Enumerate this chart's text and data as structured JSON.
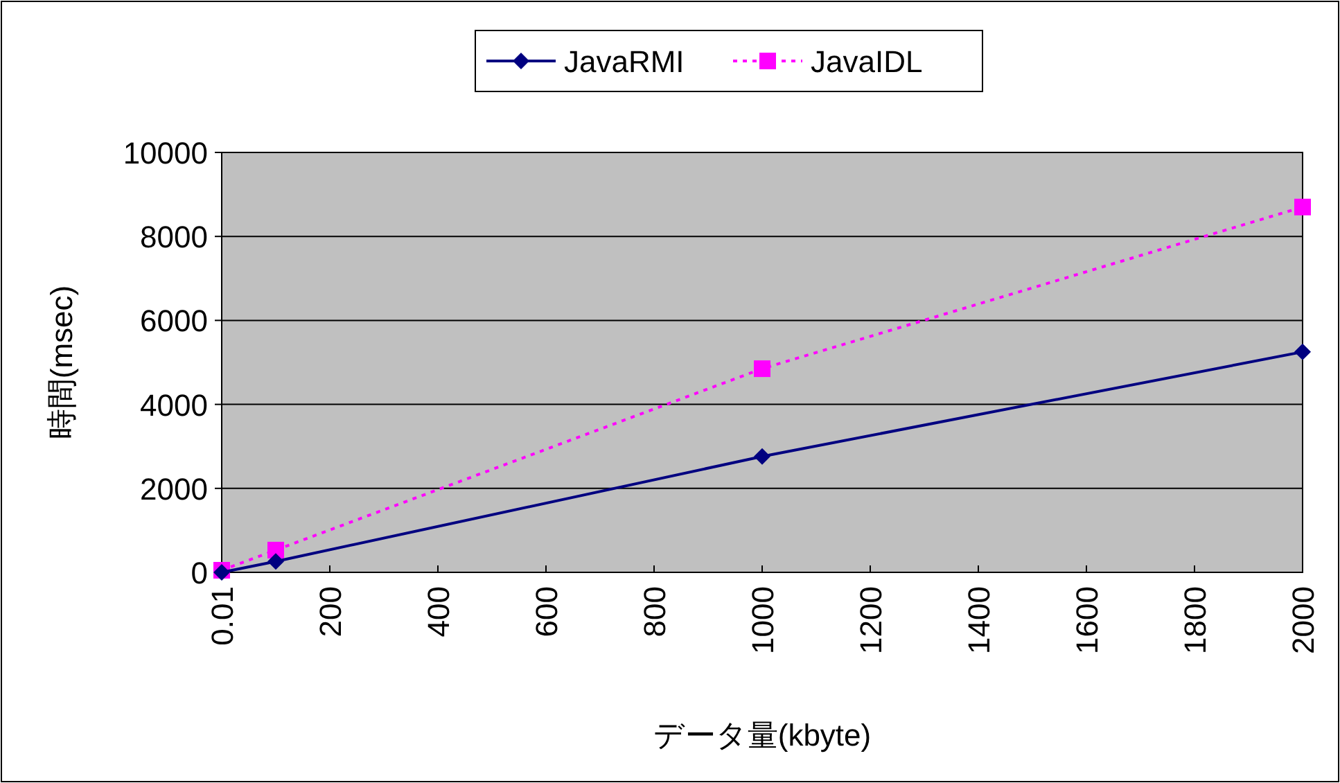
{
  "chart_data": {
    "type": "line",
    "xlabel": "データ量(kbyte)",
    "ylabel": "時間(msec)",
    "x": [
      0.01,
      100,
      1000,
      2000
    ],
    "series": [
      {
        "name": "JavaRMI",
        "color": "#000080",
        "marker": "diamond",
        "line_style": "solid",
        "values": [
          0,
          260,
          2760,
          5250
        ]
      },
      {
        "name": "JavaIDL",
        "color": "#ff00ff",
        "marker": "square",
        "line_style": "dotted",
        "values": [
          50,
          530,
          4850,
          8700
        ]
      }
    ],
    "xlim": [
      0.01,
      2000
    ],
    "xticks": [
      0.01,
      200,
      400,
      600,
      800,
      1000,
      1200,
      1400,
      1600,
      1800,
      2000
    ],
    "ylim": [
      0,
      10000
    ],
    "yticks": [
      0,
      2000,
      4000,
      6000,
      8000,
      10000
    ],
    "grid": "y",
    "legend": "top"
  }
}
